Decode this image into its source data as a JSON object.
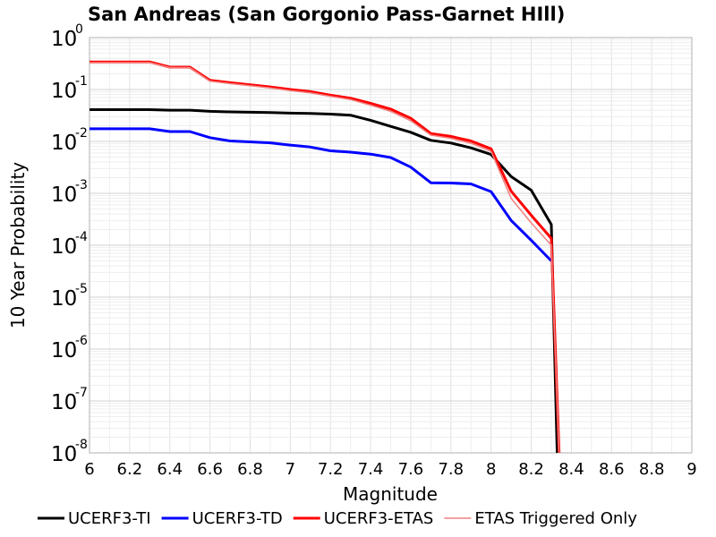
{
  "chart_data": {
    "type": "line",
    "title": "San Andreas (San Gorgonio Pass-Garnet HIll)",
    "xlabel": "Magnitude",
    "ylabel": "10 Year Probability",
    "xlim": [
      6,
      9
    ],
    "ylim_log10": [
      -8,
      0
    ],
    "yscale": "log",
    "x_ticks": [
      "6",
      "6.2",
      "6.4",
      "6.6",
      "6.8",
      "7",
      "7.2",
      "7.4",
      "7.6",
      "7.8",
      "8",
      "8.2",
      "8.4",
      "8.6",
      "8.8",
      "9"
    ],
    "x_tick_values": [
      6,
      6.2,
      6.4,
      6.6,
      6.8,
      7,
      7.2,
      7.4,
      7.6,
      7.8,
      8,
      8.2,
      8.4,
      8.6,
      8.8,
      9
    ],
    "y_ticks": [
      {
        "base": "10",
        "exp": "0",
        "value": 0
      },
      {
        "base": "10",
        "exp": "-1",
        "value": -1
      },
      {
        "base": "10",
        "exp": "-2",
        "value": -2
      },
      {
        "base": "10",
        "exp": "-3",
        "value": -3
      },
      {
        "base": "10",
        "exp": "-4",
        "value": -4
      },
      {
        "base": "10",
        "exp": "-5",
        "value": -5
      },
      {
        "base": "10",
        "exp": "-6",
        "value": -6
      },
      {
        "base": "10",
        "exp": "-7",
        "value": -7
      },
      {
        "base": "10",
        "exp": "-8",
        "value": -8
      }
    ],
    "grid": true,
    "legend_position": "bottom",
    "series": [
      {
        "name": "UCERF3-TI",
        "color": "#000000",
        "stroke": 3,
        "x": [
          6.0,
          6.1,
          6.2,
          6.3,
          6.4,
          6.5,
          6.6,
          6.7,
          6.8,
          6.9,
          7.0,
          7.1,
          7.2,
          7.3,
          7.4,
          7.5,
          7.6,
          7.7,
          7.8,
          7.9,
          8.0,
          8.1,
          8.2,
          8.3,
          8.33
        ],
        "y": [
          0.041,
          0.041,
          0.041,
          0.041,
          0.04,
          0.04,
          0.038,
          0.037,
          0.0365,
          0.036,
          0.035,
          0.0345,
          0.0335,
          0.032,
          0.0255,
          0.0195,
          0.015,
          0.0105,
          0.0093,
          0.0075,
          0.0056,
          0.0021,
          0.00115,
          0.00025,
          1e-09
        ]
      },
      {
        "name": "UCERF3-TD",
        "color": "#0000ff",
        "stroke": 3,
        "x": [
          6.0,
          6.1,
          6.2,
          6.3,
          6.4,
          6.5,
          6.6,
          6.7,
          6.8,
          6.9,
          7.0,
          7.1,
          7.2,
          7.3,
          7.4,
          7.5,
          7.6,
          7.7,
          7.8,
          7.9,
          8.0,
          8.1,
          8.2,
          8.3
        ],
        "y": [
          0.0175,
          0.0175,
          0.0175,
          0.0175,
          0.0155,
          0.0155,
          0.0118,
          0.0102,
          0.0098,
          0.0094,
          0.0085,
          0.0078,
          0.0066,
          0.0062,
          0.0057,
          0.0049,
          0.0032,
          0.0016,
          0.00158,
          0.00152,
          0.00108,
          0.0003,
          0.000125,
          5e-05
        ]
      },
      {
        "name": "UCERF3-ETAS",
        "color": "#ff0000",
        "stroke": 3,
        "x": [
          6.0,
          6.1,
          6.2,
          6.3,
          6.4,
          6.5,
          6.6,
          6.7,
          6.8,
          6.9,
          7.0,
          7.1,
          7.2,
          7.3,
          7.4,
          7.5,
          7.6,
          7.7,
          7.8,
          7.9,
          8.0,
          8.1,
          8.2,
          8.3,
          8.34
        ],
        "y": [
          0.34,
          0.34,
          0.34,
          0.34,
          0.27,
          0.27,
          0.15,
          0.135,
          0.123,
          0.112,
          0.1,
          0.091,
          0.078,
          0.068,
          0.054,
          0.042,
          0.028,
          0.0142,
          0.0125,
          0.0102,
          0.0072,
          0.0011,
          0.00038,
          0.000135,
          1e-09
        ]
      },
      {
        "name": "ETAS Triggered Only",
        "color": "#f08080",
        "stroke": 1.5,
        "x": [
          6.0,
          6.1,
          6.2,
          6.3,
          6.4,
          6.5,
          6.6,
          6.7,
          6.8,
          6.9,
          7.0,
          7.1,
          7.2,
          7.3,
          7.4,
          7.5,
          7.6,
          7.7,
          7.8,
          7.9,
          8.0,
          8.1,
          8.2,
          8.3,
          8.34
        ],
        "y": [
          0.33,
          0.33,
          0.33,
          0.33,
          0.265,
          0.265,
          0.145,
          0.13,
          0.118,
          0.107,
          0.095,
          0.086,
          0.074,
          0.064,
          0.05,
          0.038,
          0.025,
          0.0132,
          0.0115,
          0.0092,
          0.0064,
          0.0008,
          0.00027,
          0.0001,
          1e-09
        ]
      }
    ]
  }
}
